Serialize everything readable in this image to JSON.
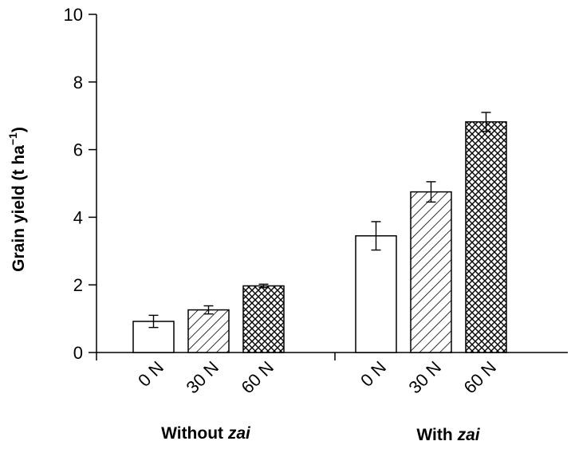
{
  "chart_data": {
    "type": "bar",
    "ylabel": "Grain yield (t ha⁻¹)",
    "ylabel_parts": {
      "main": "Grain yield (t ha",
      "sup": "−1",
      "close": ")"
    },
    "ylim": [
      0,
      10
    ],
    "yticks": [
      "0",
      "2",
      "4",
      "6",
      "8",
      "10"
    ],
    "grid": false,
    "groups": [
      {
        "label": "Without zai",
        "label_prefix": "Without ",
        "label_italic": "zai",
        "categories": [
          "0 N",
          "30 N",
          "60 N"
        ],
        "values": [
          0.92,
          1.26,
          1.97
        ],
        "errors": [
          0.18,
          0.12,
          0.05
        ],
        "patterns": [
          "none",
          "diagonal-hatch",
          "cross-hatch"
        ]
      },
      {
        "label": "With zai",
        "label_prefix": "With ",
        "label_italic": "zai",
        "categories": [
          "0 N",
          "30 N",
          "60 N"
        ],
        "values": [
          3.45,
          4.75,
          6.82
        ],
        "errors": [
          0.42,
          0.3,
          0.28
        ],
        "patterns": [
          "none",
          "diagonal-hatch",
          "cross-hatch"
        ]
      }
    ],
    "colors": {
      "axis": "#000000",
      "bar_stroke": "#000000",
      "bar_fill": "#ffffff"
    }
  }
}
